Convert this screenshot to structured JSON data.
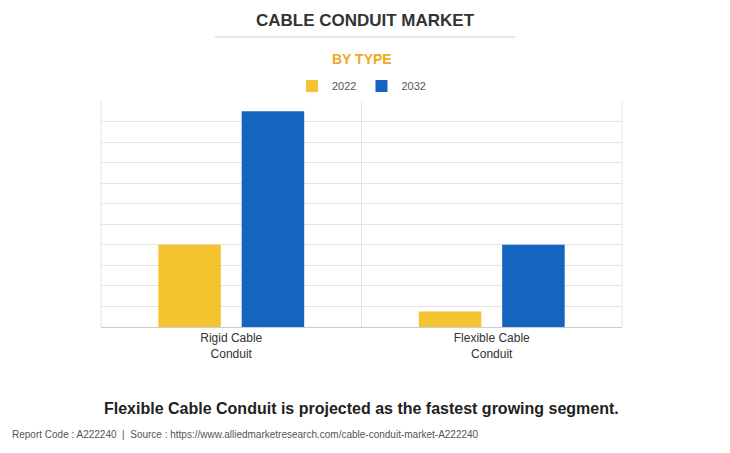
{
  "chart_data": {
    "type": "bar",
    "title": "CABLE CONDUIT MARKET",
    "subtitle": "BY TYPE",
    "categories": [
      "Rigid Cable Conduit",
      "Flexible Cable Conduit"
    ],
    "series": [
      {
        "name": "2022",
        "color": "#F4C430",
        "values": [
          4,
          0.75
        ]
      },
      {
        "name": "2032",
        "color": "#1565C0",
        "values": [
          10.5,
          4
        ]
      }
    ],
    "ylim": [
      0,
      11
    ],
    "yticks": [
      0,
      1,
      2,
      3,
      4,
      5,
      6,
      7,
      8,
      9,
      10,
      11
    ],
    "grid": true,
    "legend": "top",
    "tick_labels": "x",
    "data_labels": false,
    "annotations": [
      "Flexible Cable Conduit is projected as the fastest growing segment.",
      "Report Code : A222240  |  Source : https://www.alliedmarketresearch.com/cable-conduit-market-A222240"
    ]
  }
}
